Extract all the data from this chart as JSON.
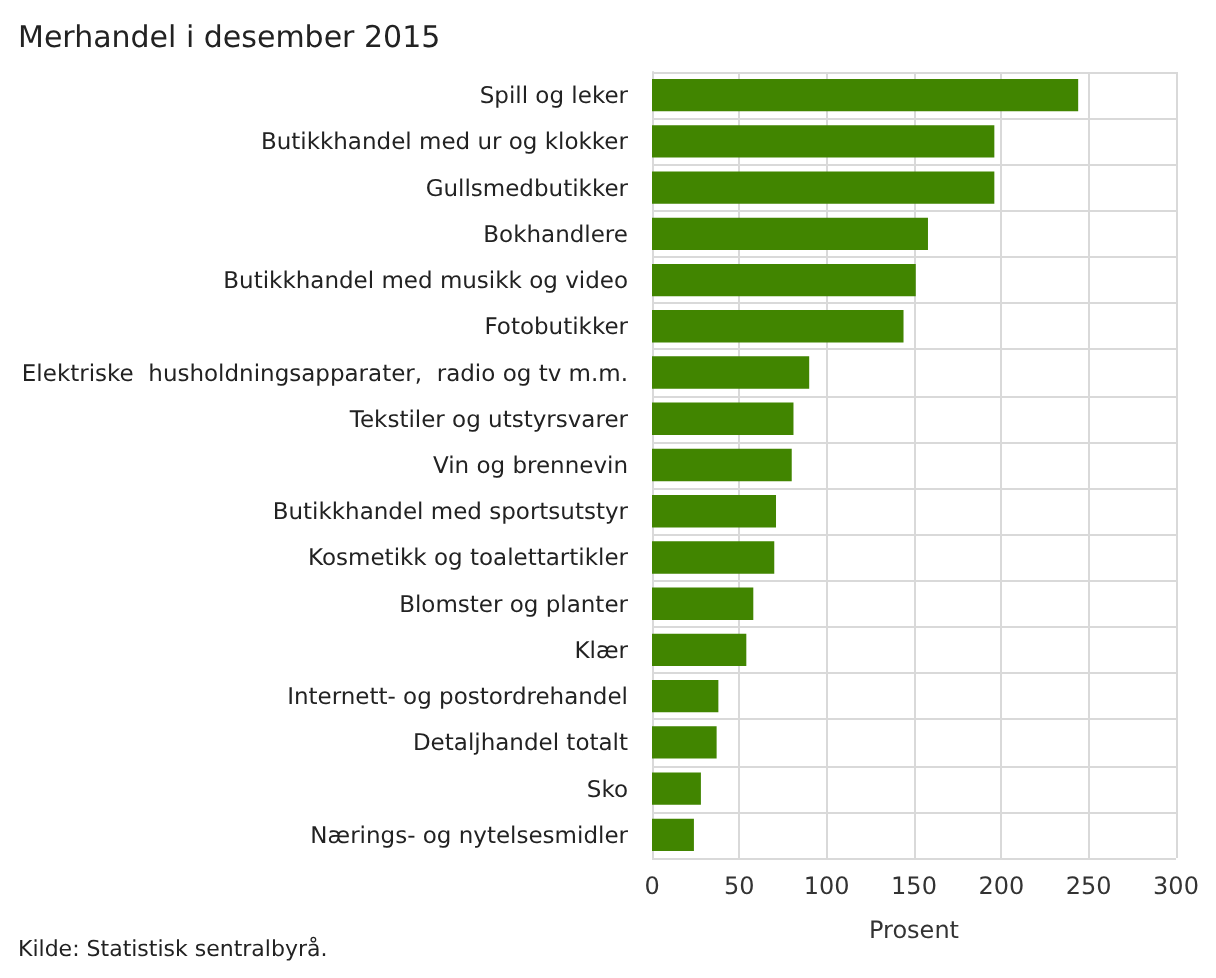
{
  "chart_data": {
    "type": "bar",
    "orientation": "horizontal",
    "title": "Merhandel i desember 2015",
    "xlabel": "Prosent",
    "categories": [
      "Spill og leker",
      "Butikkhandel med ur og klokker",
      "Gullsmedbutikker",
      "Bokhandlere",
      "Butikkhandel med musikk og video",
      "Fotobutikker",
      "Elektriske  husholdningsapparater,  radio og tv m.m.",
      "Tekstiler og utstyrsvarer",
      "Vin og brennevin",
      "Butikkhandel med sportsutstyr",
      "Kosmetikk og toalettartikler",
      "Blomster og planter",
      "Klær",
      "Internett- og postordrehandel",
      "Detaljhandel totalt",
      "Sko",
      "Nærings- og nytelsesmidler"
    ],
    "values": [
      244,
      196,
      196,
      158,
      151,
      144,
      90,
      81,
      80,
      71,
      70,
      58,
      54,
      38,
      37,
      28,
      24
    ],
    "color": "#418500",
    "xlim": [
      0,
      300
    ],
    "xticks": [
      0,
      50,
      100,
      150,
      200,
      250,
      300
    ],
    "grid": true,
    "annotations": [
      "Kilde: Statistisk sentralbyrå."
    ]
  }
}
